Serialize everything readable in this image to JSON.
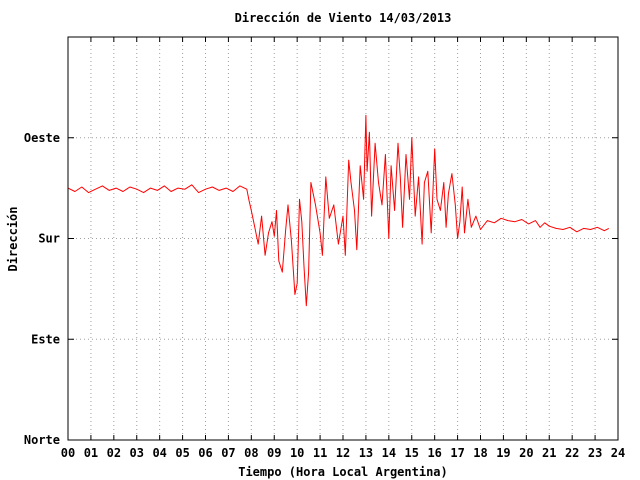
{
  "chart_data": {
    "type": "line",
    "title": "Dirección de Viento 14/03/2013",
    "xlabel": "Tiempo (Hora Local Argentina)",
    "ylabel": "Dirección",
    "xlim": [
      0,
      24
    ],
    "ylim": [
      0,
      360
    ],
    "x_ticks": [
      "00",
      "01",
      "02",
      "03",
      "04",
      "05",
      "06",
      "07",
      "08",
      "09",
      "10",
      "11",
      "12",
      "13",
      "14",
      "15",
      "16",
      "17",
      "18",
      "19",
      "20",
      "21",
      "22",
      "23",
      "24"
    ],
    "y_ticks": [
      {
        "value": 0,
        "label": "Norte"
      },
      {
        "value": 90,
        "label": "Este"
      },
      {
        "value": 180,
        "label": "Sur"
      },
      {
        "value": 270,
        "label": "Oeste"
      }
    ],
    "grid": true,
    "series": [
      {
        "color": "#ff0000",
        "x": [
          0.0,
          0.3,
          0.6,
          0.9,
          1.2,
          1.5,
          1.8,
          2.1,
          2.4,
          2.7,
          3.0,
          3.3,
          3.6,
          3.9,
          4.2,
          4.5,
          4.8,
          5.1,
          5.4,
          5.7,
          6.0,
          6.3,
          6.6,
          6.9,
          7.2,
          7.5,
          7.8,
          7.9,
          8.0,
          8.15,
          8.3,
          8.45,
          8.6,
          8.75,
          8.9,
          9.0,
          9.1,
          9.2,
          9.35,
          9.5,
          9.6,
          9.75,
          9.9,
          10.0,
          10.1,
          10.2,
          10.3,
          10.4,
          10.5,
          10.6,
          10.8,
          11.0,
          11.1,
          11.25,
          11.4,
          11.6,
          11.8,
          12.0,
          12.1,
          12.25,
          12.35,
          12.5,
          12.6,
          12.75,
          12.9,
          13.0,
          13.05,
          13.15,
          13.25,
          13.4,
          13.55,
          13.7,
          13.85,
          14.0,
          14.1,
          14.25,
          14.4,
          14.5,
          14.6,
          14.75,
          14.9,
          15.0,
          15.15,
          15.3,
          15.45,
          15.55,
          15.7,
          15.85,
          16.0,
          16.1,
          16.25,
          16.4,
          16.5,
          16.6,
          16.75,
          16.9,
          17.0,
          17.1,
          17.2,
          17.3,
          17.45,
          17.6,
          17.8,
          18.0,
          18.3,
          18.6,
          18.9,
          19.2,
          19.5,
          19.8,
          20.1,
          20.4,
          20.6,
          20.8,
          21.0,
          21.3,
          21.6,
          21.9,
          22.2,
          22.5,
          22.8,
          23.1,
          23.4,
          23.6
        ],
        "y": [
          225,
          222,
          226,
          221,
          224,
          227,
          223,
          225,
          222,
          226,
          224,
          221,
          225,
          223,
          227,
          222,
          225,
          224,
          228,
          221,
          224,
          226,
          223,
          225,
          222,
          227,
          224,
          214,
          205,
          190,
          175,
          200,
          165,
          185,
          195,
          182,
          205,
          160,
          150,
          188,
          210,
          178,
          130,
          140,
          215,
          195,
          155,
          120,
          150,
          230,
          210,
          185,
          165,
          235,
          198,
          210,
          175,
          200,
          165,
          250,
          230,
          205,
          170,
          245,
          215,
          290,
          240,
          275,
          200,
          265,
          230,
          210,
          255,
          180,
          245,
          205,
          265,
          235,
          190,
          255,
          215,
          270,
          200,
          235,
          175,
          230,
          240,
          185,
          260,
          215,
          205,
          230,
          190,
          220,
          238,
          210,
          180,
          195,
          226,
          185,
          215,
          190,
          200,
          188,
          196,
          194,
          198,
          196,
          195,
          197,
          193,
          196,
          190,
          194,
          191,
          189,
          188,
          190,
          186,
          189,
          188,
          190,
          187,
          189
        ]
      }
    ]
  }
}
